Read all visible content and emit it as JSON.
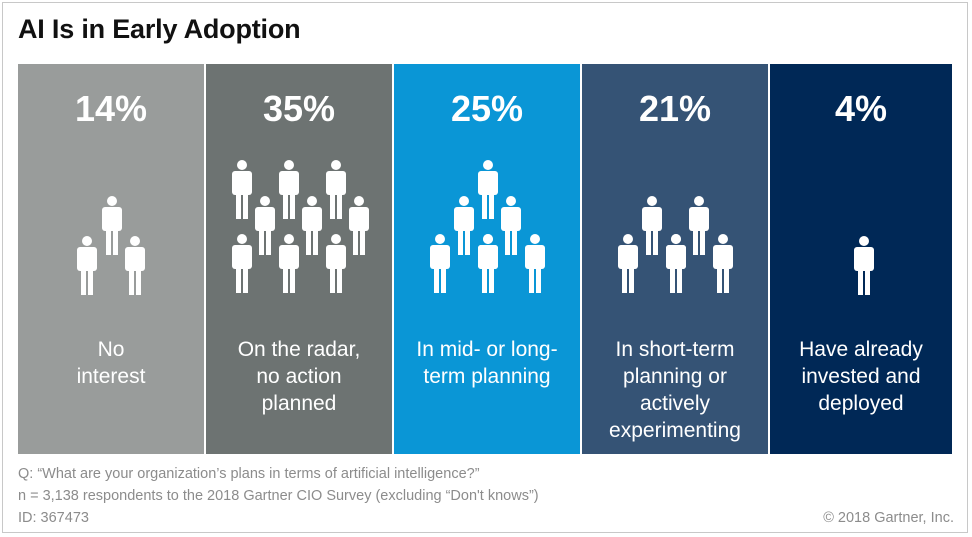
{
  "title": "AI Is in Early Adoption",
  "chart_data": {
    "type": "table",
    "title": "AI Is in Early Adoption",
    "categories": [
      "No interest",
      "On the radar, no action planned",
      "In mid- or long-term planning",
      "In short-term planning or actively experimenting",
      "Have already invested and deployed"
    ],
    "values": [
      14,
      35,
      25,
      21,
      4
    ],
    "panels": [
      {
        "pct": "14%",
        "label_lines": [
          "No",
          "interest"
        ],
        "color": "#999c9b",
        "people": 3
      },
      {
        "pct": "35%",
        "label_lines": [
          "On the radar,",
          "no action",
          "planned"
        ],
        "color": "#6d7372",
        "people": 10
      },
      {
        "pct": "25%",
        "label_lines": [
          "In mid- or long-",
          "term planning"
        ],
        "color": "#0a96d6",
        "people": 7
      },
      {
        "pct": "21%",
        "label_lines": [
          "In short-term",
          "planning or",
          "actively",
          "experimenting"
        ],
        "color": "#355375",
        "people": 6
      },
      {
        "pct": "4%",
        "label_lines": [
          "Have already",
          "invested and",
          "deployed"
        ],
        "color": "#002856",
        "people": 1
      }
    ]
  },
  "footer": {
    "question": "Q: “What are your organization’s plans in terms of artificial intelligence?”",
    "sample": "n = 3,138 respondents to the 2018 Gartner CIO Survey (excluding “Don't knows”)",
    "id": "ID: 367473",
    "copyright": "© 2018 Gartner, Inc."
  }
}
